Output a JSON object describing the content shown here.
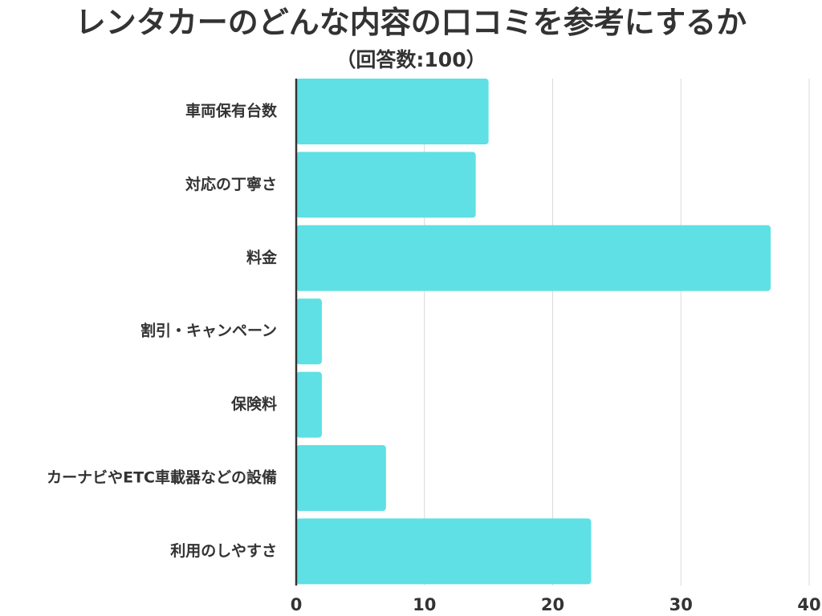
{
  "chart_data": {
    "type": "bar",
    "orientation": "horizontal",
    "title": "レンタカーのどんな内容の口コミを参考にするか",
    "subtitle": "（回答数:100）",
    "categories": [
      "車両保有台数",
      "対応の丁寧さ",
      "料金",
      "割引・キャンペーン",
      "保険料",
      "カーナビやETC車載器などの設備",
      "利用のしやすさ"
    ],
    "values": [
      15,
      14,
      37,
      2,
      2,
      7,
      23
    ],
    "xlim": [
      0,
      40
    ],
    "xticks": [
      0,
      10,
      20,
      30,
      40
    ],
    "grid": true,
    "bar_color": "#5ee0e4",
    "grid_color": "#d9d9d9",
    "axis_color": "#333333"
  }
}
